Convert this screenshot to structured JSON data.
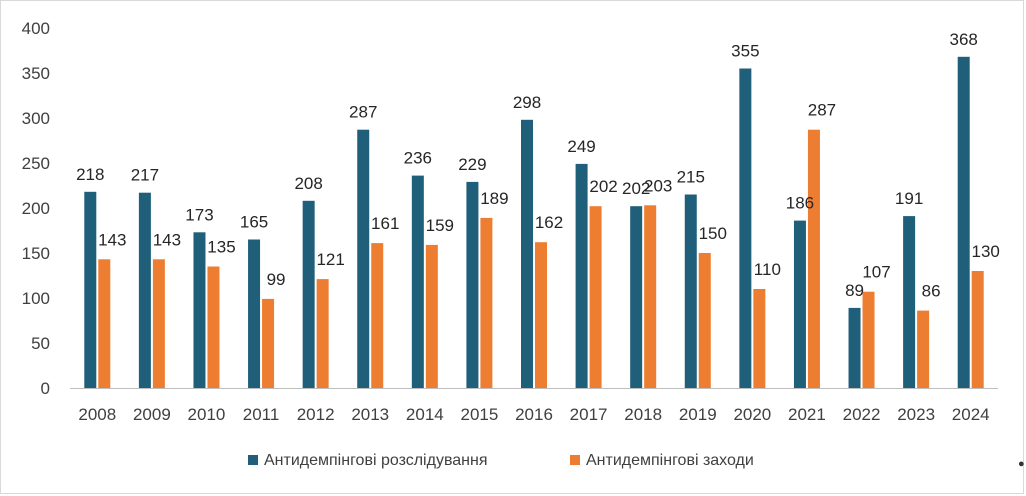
{
  "chart_data": {
    "type": "bar",
    "title": "",
    "xlabel": "",
    "ylabel": "",
    "ylim": [
      0,
      400
    ],
    "yticks": [
      0,
      50,
      100,
      150,
      200,
      250,
      300,
      350,
      400
    ],
    "categories": [
      "2008",
      "2009",
      "2010",
      "2011",
      "2012",
      "2013",
      "2014",
      "2015",
      "2016",
      "2017",
      "2018",
      "2019",
      "2020",
      "2021",
      "2022",
      "2023",
      "2024"
    ],
    "series": [
      {
        "name": "Антидемпінгові розслідування",
        "color": "#1f5f7a",
        "values": [
          218,
          217,
          173,
          165,
          208,
          287,
          236,
          229,
          298,
          249,
          202,
          215,
          355,
          186,
          89,
          191,
          368
        ]
      },
      {
        "name": "Антидемпінгові заходи",
        "color": "#ed7d31",
        "values": [
          143,
          143,
          135,
          99,
          121,
          161,
          159,
          189,
          162,
          202,
          203,
          150,
          110,
          287,
          107,
          86,
          130
        ]
      }
    ],
    "grid": false,
    "legend": "bottom"
  }
}
